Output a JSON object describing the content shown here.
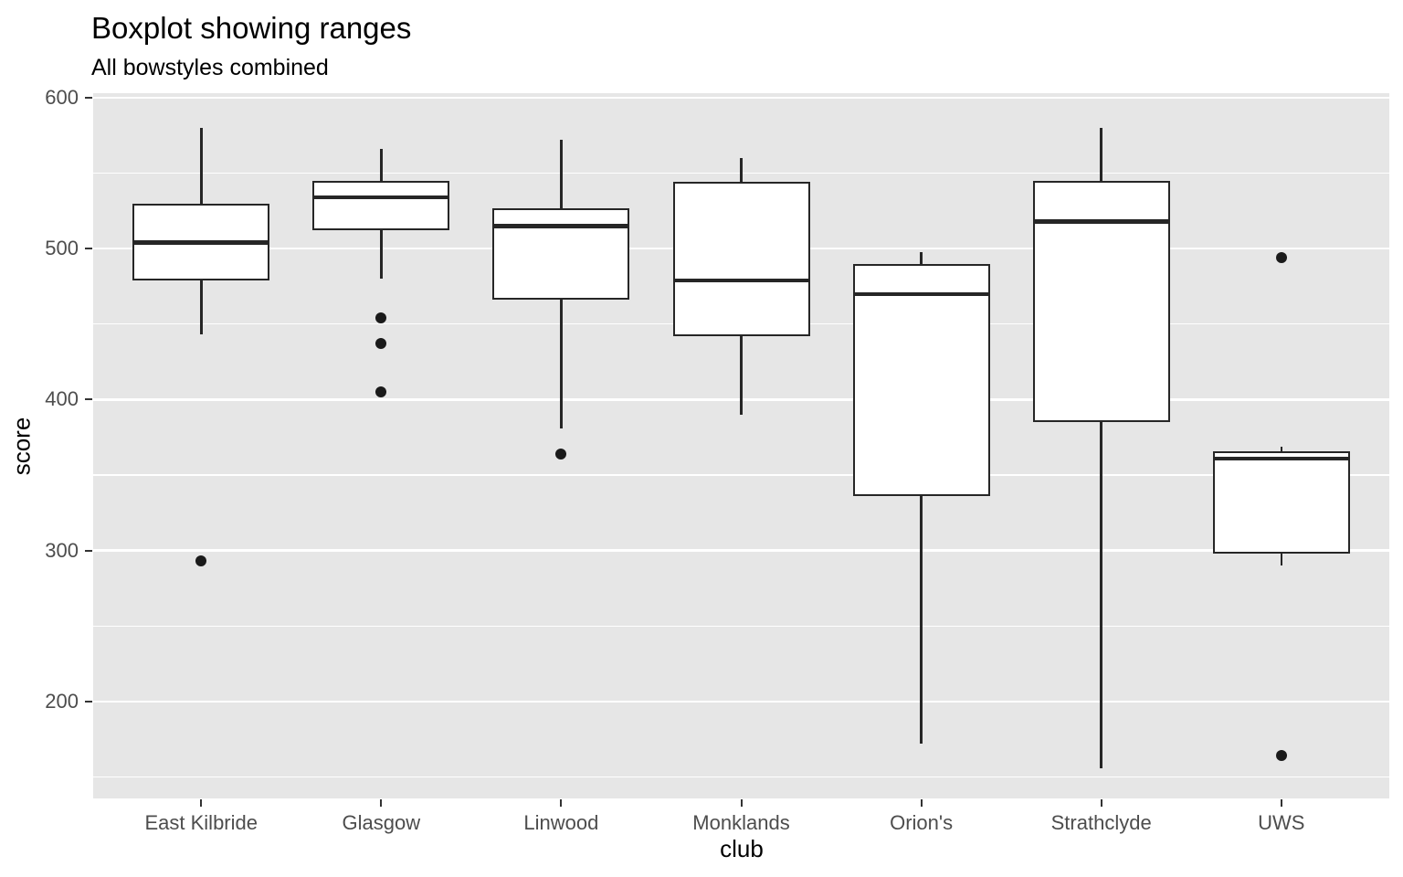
{
  "chart_data": {
    "type": "boxplot",
    "title": "Boxplot showing ranges",
    "subtitle": "All bowstyles combined",
    "xlabel": "club",
    "ylabel": "score",
    "categories": [
      "East Kilbride",
      "Glasgow",
      "Linwood",
      "Monklands",
      "Orion's",
      "Strathclyde",
      "UWS"
    ],
    "series": [
      {
        "name": "East Kilbride",
        "whisker_low": 443,
        "q1": 479,
        "median": 504,
        "q3": 530,
        "whisker_high": 580,
        "outliers": [
          293
        ]
      },
      {
        "name": "Glasgow",
        "whisker_low": 480,
        "q1": 512,
        "median": 534,
        "q3": 545,
        "whisker_high": 566,
        "outliers": [
          454,
          437,
          405
        ]
      },
      {
        "name": "Linwood",
        "whisker_low": 381,
        "q1": 466,
        "median": 515,
        "q3": 527,
        "whisker_high": 572,
        "outliers": [
          364
        ]
      },
      {
        "name": "Monklands",
        "whisker_low": 390,
        "q1": 442,
        "median": 479,
        "q3": 544,
        "whisker_high": 560,
        "outliers": []
      },
      {
        "name": "Orion's",
        "whisker_low": 172,
        "q1": 336,
        "median": 470,
        "q3": 490,
        "whisker_high": 498,
        "outliers": []
      },
      {
        "name": "Strathclyde",
        "whisker_low": 156,
        "q1": 385,
        "median": 518,
        "q3": 545,
        "whisker_high": 580,
        "outliers": []
      },
      {
        "name": "UWS",
        "whisker_low": 290,
        "q1": 298,
        "median": 361,
        "q3": 366,
        "whisker_high": 369,
        "outliers": [
          494,
          164
        ]
      }
    ],
    "y_ticks": [
      600,
      500,
      400,
      300,
      200
    ],
    "y_minor_ticks": [
      550,
      450,
      350,
      250,
      150
    ],
    "ylim": [
      135.8,
      603
    ],
    "grid": true,
    "legend": false,
    "colors": {
      "panel_bg": "#e6e6e6",
      "grid": "#ffffff",
      "box_fill": "#ffffff",
      "box_stroke": "#262626",
      "outlier": "#1a1a1a",
      "tick_label": "#4d4d4d",
      "tick_mark": "#333333",
      "text": "#000000"
    }
  }
}
